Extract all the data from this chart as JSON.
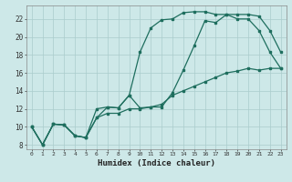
{
  "xlabel": "Humidex (Indice chaleur)",
  "background_color": "#cde8e8",
  "grid_color": "#aacccc",
  "line_color": "#1e6e5e",
  "xlim": [
    -0.5,
    23.5
  ],
  "ylim": [
    7.5,
    23.5
  ],
  "xticks": [
    0,
    1,
    2,
    3,
    4,
    5,
    6,
    7,
    8,
    9,
    10,
    11,
    12,
    13,
    14,
    15,
    16,
    17,
    18,
    19,
    20,
    21,
    22,
    23
  ],
  "yticks": [
    8,
    10,
    12,
    14,
    16,
    18,
    20,
    22
  ],
  "line1_x": [
    0,
    1,
    2,
    3,
    4,
    5,
    6,
    7,
    8,
    9,
    10,
    11,
    12,
    13,
    14,
    15,
    16,
    17,
    18,
    19,
    20,
    21,
    22,
    23
  ],
  "line1_y": [
    10,
    8,
    10.3,
    10.2,
    9.0,
    8.8,
    11.0,
    12.2,
    12.1,
    13.5,
    12.1,
    12.2,
    12.2,
    13.8,
    16.3,
    19.0,
    21.8,
    21.6,
    22.5,
    22.5,
    22.5,
    22.3,
    20.7,
    18.3
  ],
  "line2_x": [
    0,
    1,
    2,
    3,
    4,
    5,
    6,
    7,
    8,
    9,
    10,
    11,
    12,
    13,
    14,
    15,
    16,
    17,
    18,
    19,
    20,
    21,
    22,
    23
  ],
  "line2_y": [
    10,
    8,
    10.3,
    10.2,
    9.0,
    8.8,
    12.0,
    12.2,
    12.1,
    13.5,
    18.3,
    21.0,
    21.9,
    22.0,
    22.7,
    22.8,
    22.8,
    22.5,
    22.5,
    22.0,
    22.0,
    20.7,
    18.3,
    16.5
  ],
  "line3_x": [
    0,
    1,
    2,
    3,
    4,
    5,
    6,
    7,
    8,
    9,
    10,
    11,
    12,
    13,
    14,
    15,
    16,
    17,
    18,
    19,
    20,
    21,
    22,
    23
  ],
  "line3_y": [
    10,
    8,
    10.3,
    10.2,
    9.0,
    8.8,
    11.0,
    11.5,
    11.5,
    12.0,
    12.0,
    12.2,
    12.5,
    13.5,
    14.0,
    14.5,
    15.0,
    15.5,
    16.0,
    16.2,
    16.5,
    16.3,
    16.5,
    16.5
  ]
}
